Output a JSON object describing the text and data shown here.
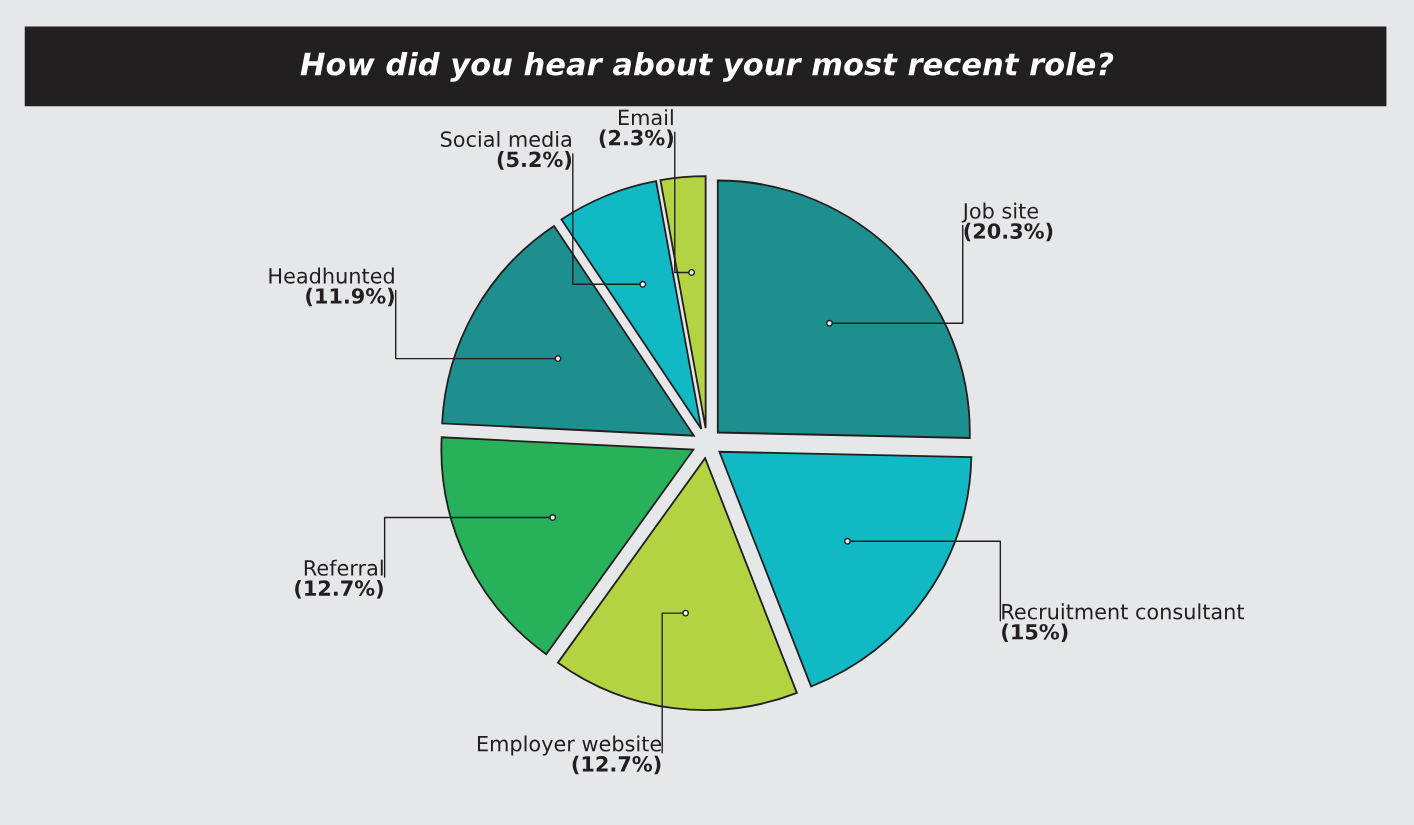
{
  "chart_data": {
    "type": "pie",
    "title": "How did you hear about your most recent role?",
    "categories": [
      "Job site",
      "Recruitment consultant",
      "Employer website",
      "Referral",
      "Headhunted",
      "Social media",
      "Email"
    ],
    "values": [
      20.3,
      15,
      12.7,
      12.7,
      11.9,
      5.2,
      2.3
    ],
    "value_labels": [
      "(20.3%)",
      "(15%)",
      "(12.7%)",
      "(12.7%)",
      "(11.9%)",
      "(5.2%)",
      "(2.3%)"
    ],
    "colors": [
      "#1e8f8f",
      "#10b9c4",
      "#b3d342",
      "#27b15a",
      "#1e8f8f",
      "#10b9c4",
      "#b3d342"
    ],
    "legend": false
  }
}
